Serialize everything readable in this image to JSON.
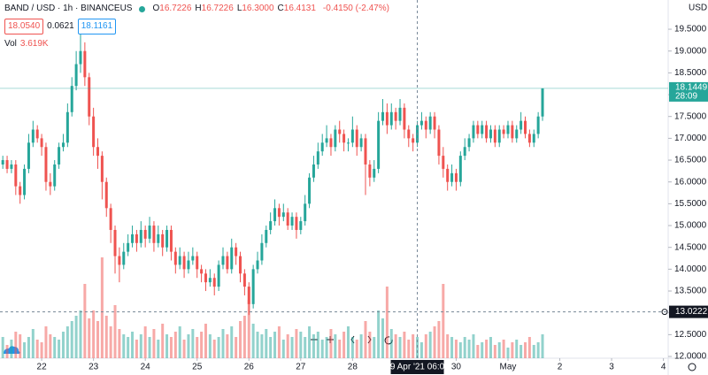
{
  "chart_data": {
    "type": "candlestick",
    "title": "BAND / USD · 1h · BINANCEUS",
    "legend": [
      {
        "label": "O",
        "value": "16.7226"
      },
      {
        "label": "H",
        "value": "16.7226"
      },
      {
        "label": "L",
        "value": "16.3000"
      },
      {
        "label": "C",
        "value": "16.4131"
      }
    ],
    "change": "-0.4150 (-2.47%)",
    "bid": "18.0540",
    "spread": "0.0621",
    "ask": "18.1161",
    "volume_label": "Vol",
    "volume_value": "3.619K",
    "currency": "USD",
    "up_color": "#26a69a",
    "down_color": "#ef5350",
    "open": [
      16.4,
      16.5,
      16.3,
      16.4,
      15.9,
      15.7,
      16.3,
      16.9,
      17.2,
      17.0,
      16.8,
      16.0,
      15.9,
      16.4,
      16.8,
      16.9,
      17.6,
      18.2,
      18.7,
      19.0,
      18.4,
      17.5,
      16.8,
      16.6,
      16.0,
      15.4,
      14.9,
      14.3,
      14.1,
      14.4,
      14.6,
      14.8,
      14.6,
      14.9,
      14.7,
      15.0,
      14.6,
      14.8,
      14.5,
      14.9,
      14.4,
      14.1,
      14.3,
      14.0,
      14.2,
      14.3,
      14.0,
      13.9,
      13.7,
      13.8,
      13.6,
      14.1,
      14.3,
      14.0,
      14.5,
      14.3,
      13.9,
      13.6,
      13.2,
      14.0,
      14.2,
      14.6,
      14.9,
      15.1,
      15.4,
      15.2,
      15.3,
      15.0,
      15.2,
      14.9,
      15.1,
      15.5,
      16.1,
      16.4,
      16.7,
      16.9,
      17.0,
      16.8,
      17.2,
      17.1,
      16.9,
      16.9,
      17.2,
      16.8,
      17.0,
      16.4,
      16.1,
      16.3,
      17.4,
      17.6,
      17.3,
      17.6,
      17.4,
      17.7,
      17.2,
      17.0,
      16.9,
      17.3,
      17.4,
      17.2,
      17.5,
      17.2,
      16.6,
      16.3,
      16.0,
      16.2,
      16.0,
      16.6,
      16.8,
      17.0,
      17.3,
      17.1,
      17.3,
      17.0,
      17.2,
      16.9,
      17.2,
      17.1,
      17.3,
      17.0,
      17.2,
      17.4,
      17.1,
      16.9,
      17.1,
      17.5
    ],
    "high": [
      16.6,
      16.6,
      16.5,
      16.5,
      16.0,
      16.4,
      17.1,
      17.4,
      17.3,
      17.1,
      16.9,
      16.2,
      16.5,
      16.9,
      17.1,
      17.8,
      18.4,
      19.0,
      19.4,
      19.2,
      18.5,
      17.7,
      17.0,
      16.7,
      16.1,
      15.5,
      15.0,
      14.5,
      14.6,
      14.8,
      15.0,
      14.9,
      15.1,
      15.0,
      15.2,
      15.1,
      15.0,
      14.9,
      15.0,
      15.0,
      14.5,
      14.5,
      14.4,
      14.4,
      14.5,
      14.4,
      14.1,
      14.0,
      14.0,
      13.9,
      14.2,
      14.5,
      14.4,
      14.7,
      14.6,
      14.4,
      14.0,
      13.7,
      14.1,
      14.4,
      14.8,
      15.0,
      15.3,
      15.6,
      15.5,
      15.5,
      15.4,
      15.3,
      15.3,
      15.2,
      15.7,
      16.2,
      16.6,
      16.9,
      17.1,
      17.3,
      17.1,
      17.3,
      17.4,
      17.2,
      17.0,
      17.5,
      17.3,
      17.1,
      17.1,
      16.5,
      16.5,
      17.6,
      17.9,
      17.8,
      17.8,
      17.7,
      17.9,
      17.8,
      17.3,
      17.1,
      17.4,
      17.6,
      17.5,
      17.6,
      17.6,
      17.3,
      16.8,
      16.4,
      16.4,
      16.3,
      16.7,
      17.0,
      17.1,
      17.4,
      17.4,
      17.4,
      17.4,
      17.3,
      17.3,
      17.3,
      17.3,
      17.4,
      17.4,
      17.3,
      17.6,
      17.5,
      17.2,
      17.2,
      17.6,
      18.1449
    ],
    "low": [
      16.3,
      16.2,
      16.2,
      15.7,
      15.5,
      15.6,
      16.2,
      16.8,
      16.9,
      16.6,
      15.8,
      15.7,
      15.8,
      16.3,
      16.7,
      16.8,
      17.5,
      18.1,
      18.5,
      18.2,
      17.3,
      16.6,
      16.3,
      15.6,
      15.2,
      14.6,
      13.9,
      13.7,
      14.0,
      14.3,
      14.5,
      14.4,
      14.5,
      14.5,
      14.6,
      14.4,
      14.5,
      14.3,
      14.4,
      14.2,
      13.9,
      14.0,
      13.8,
      13.9,
      14.1,
      13.8,
      13.7,
      13.5,
      13.6,
      13.4,
      13.5,
      14.0,
      13.9,
      13.9,
      14.1,
      13.7,
      13.4,
      12.95,
      13.1,
      13.9,
      14.1,
      14.5,
      14.8,
      15.0,
      15.0,
      15.1,
      14.9,
      14.9,
      14.7,
      14.8,
      15.0,
      15.4,
      16.0,
      16.3,
      16.6,
      16.8,
      16.6,
      16.7,
      16.9,
      16.7,
      16.7,
      16.8,
      16.6,
      16.7,
      15.7,
      15.9,
      16.0,
      16.2,
      17.3,
      17.1,
      17.2,
      17.2,
      17.3,
      17.0,
      16.8,
      16.7,
      16.8,
      17.2,
      17.0,
      17.1,
      17.0,
      16.4,
      16.1,
      15.8,
      15.9,
      15.8,
      15.9,
      16.5,
      16.7,
      16.9,
      17.0,
      17.0,
      16.9,
      16.9,
      16.8,
      16.8,
      17.0,
      17.0,
      16.9,
      16.9,
      17.1,
      17.0,
      16.8,
      16.8,
      17.0,
      17.4
    ],
    "close": [
      16.5,
      16.3,
      16.4,
      15.9,
      15.7,
      16.3,
      16.9,
      17.2,
      17.0,
      16.8,
      16.0,
      15.9,
      16.4,
      16.8,
      16.9,
      17.6,
      18.2,
      18.7,
      19.0,
      18.4,
      17.5,
      16.8,
      16.6,
      16.0,
      15.4,
      14.9,
      14.3,
      14.1,
      14.4,
      14.6,
      14.8,
      14.6,
      14.9,
      14.7,
      15.0,
      14.6,
      14.8,
      14.5,
      14.9,
      14.4,
      14.1,
      14.3,
      14.0,
      14.2,
      14.3,
      14.0,
      13.9,
      13.7,
      13.8,
      13.6,
      14.1,
      14.3,
      14.0,
      14.5,
      14.3,
      13.9,
      13.6,
      13.2,
      14.0,
      14.2,
      14.6,
      14.9,
      15.1,
      15.4,
      15.2,
      15.3,
      15.0,
      15.2,
      14.9,
      15.1,
      15.5,
      16.1,
      16.4,
      16.7,
      16.9,
      17.0,
      16.8,
      17.2,
      17.1,
      16.9,
      16.9,
      17.2,
      16.8,
      17.0,
      16.4,
      16.1,
      16.3,
      17.4,
      17.6,
      17.3,
      17.6,
      17.4,
      17.7,
      17.2,
      17.0,
      16.9,
      17.3,
      17.4,
      17.2,
      17.5,
      17.2,
      16.6,
      16.3,
      16.0,
      16.2,
      16.0,
      16.6,
      16.8,
      17.0,
      17.3,
      17.1,
      17.3,
      17.0,
      17.2,
      16.9,
      17.2,
      17.1,
      17.3,
      17.0,
      17.2,
      17.4,
      17.1,
      16.9,
      17.1,
      17.5,
      18.1449
    ],
    "volume": [
      8,
      5,
      7,
      10,
      9,
      6,
      8,
      11,
      7,
      6,
      12,
      9,
      8,
      7,
      10,
      12,
      14,
      16,
      18,
      28,
      15,
      18,
      14,
      38,
      16,
      12,
      20,
      11,
      9,
      8,
      10,
      7,
      9,
      12,
      8,
      11,
      7,
      13,
      9,
      8,
      10,
      12,
      7,
      9,
      11,
      8,
      10,
      13,
      9,
      7,
      8,
      11,
      9,
      12,
      8,
      14,
      16,
      22,
      13,
      10,
      9,
      11,
      8,
      10,
      12,
      7,
      9,
      8,
      11,
      10,
      8,
      12,
      9,
      10,
      7,
      8,
      11,
      9,
      7,
      10,
      12,
      8,
      7,
      9,
      14,
      10,
      8,
      18,
      15,
      27,
      11,
      9,
      8,
      10,
      7,
      9,
      8,
      6,
      9,
      10,
      12,
      14,
      28,
      9,
      8,
      7,
      6,
      8,
      7,
      9,
      5,
      6,
      7,
      8,
      5,
      6,
      7,
      4,
      6,
      7,
      5,
      6,
      8,
      5,
      6,
      9
    ],
    "volume_lim": [
      0,
      40
    ],
    "xlim": [
      -0.65,
      154.1
    ],
    "xticks": [
      {
        "value": 9,
        "label": "22"
      },
      {
        "value": 21,
        "label": "23"
      },
      {
        "value": 33,
        "label": "24"
      },
      {
        "value": 45,
        "label": "25"
      },
      {
        "value": 57,
        "label": "26"
      },
      {
        "value": 69,
        "label": "27"
      },
      {
        "value": 81,
        "label": "28"
      },
      {
        "value": 105,
        "label": "30"
      },
      {
        "value": 117,
        "label": "May"
      },
      {
        "value": 129,
        "label": "2"
      },
      {
        "value": 141,
        "label": "3"
      },
      {
        "value": 153,
        "label": "4"
      }
    ],
    "ylim": [
      11.96,
      20.17
    ],
    "yticks": [
      {
        "value": 12,
        "label": "12.0000"
      },
      {
        "value": 12.5,
        "label": "12.5000"
      },
      {
        "value": 13,
        "label": "13.0000"
      },
      {
        "value": 13.5,
        "label": "13.5000"
      },
      {
        "value": 14,
        "label": "14.0000"
      },
      {
        "value": 14.5,
        "label": "14.5000"
      },
      {
        "value": 15,
        "label": "15.0000"
      },
      {
        "value": 15.5,
        "label": "15.5000"
      },
      {
        "value": 16,
        "label": "16.0000"
      },
      {
        "value": 16.5,
        "label": "16.5000"
      },
      {
        "value": 17,
        "label": "17.0000"
      },
      {
        "value": 17.5,
        "label": "17.5000"
      },
      {
        "value": 18,
        "label": "18.0000"
      },
      {
        "value": 18.5,
        "label": "18.5000"
      },
      {
        "value": 19,
        "label": "19.0000"
      },
      {
        "value": 19.5,
        "label": "19.5000"
      }
    ],
    "grid": false,
    "last_price": {
      "value": 18.1449,
      "label": "18.1449",
      "countdown": "28:09"
    },
    "crosshair": {
      "x": {
        "value": 96,
        "label": "29 Apr '21 06:00"
      },
      "y": {
        "value": 13.0222,
        "label": "13.0222"
      }
    }
  }
}
